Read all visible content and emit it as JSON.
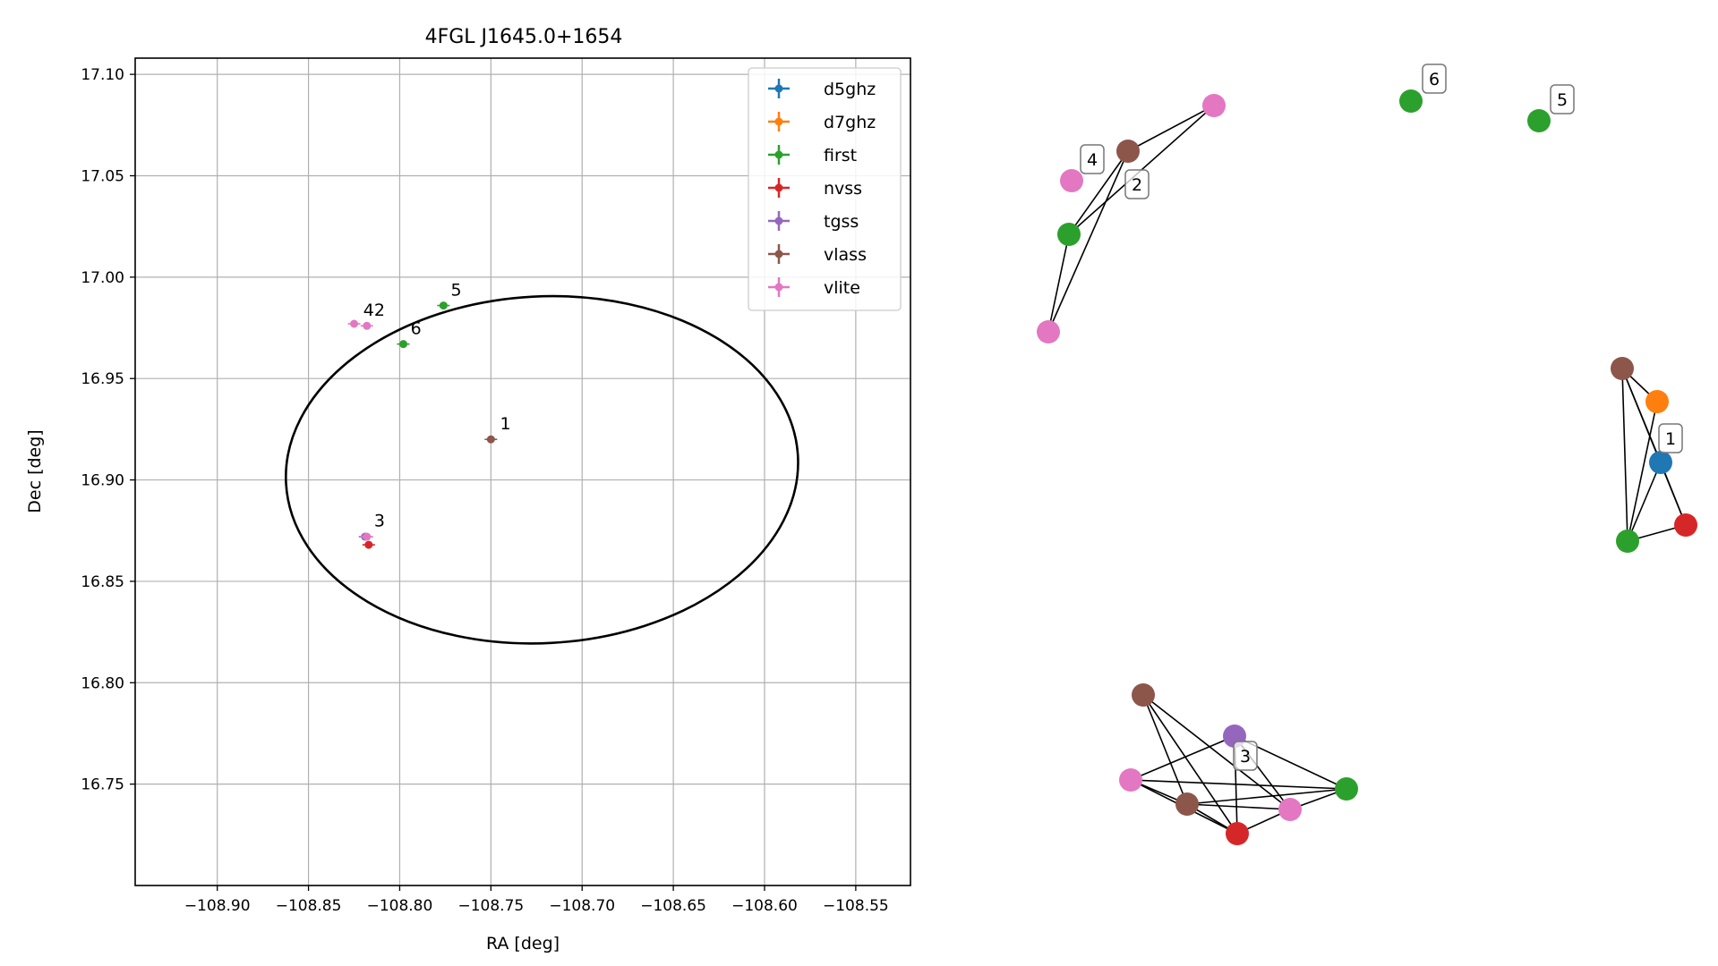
{
  "chart_data": [
    {
      "type": "scatter",
      "title": "4FGL J1645.0+1654",
      "xlabel": "RA [deg]",
      "ylabel": "Dec [deg]",
      "xlim": [
        -108.945,
        -108.52
      ],
      "ylim": [
        16.7,
        17.108
      ],
      "grid": true,
      "legend_placement": "top-right",
      "xticks": [
        -108.9,
        -108.85,
        -108.8,
        -108.75,
        -108.7,
        -108.65,
        -108.6,
        -108.55
      ],
      "xtick_labels": [
        "−108.90",
        "−108.85",
        "−108.80",
        "−108.75",
        "−108.70",
        "−108.65",
        "−108.60",
        "−108.55"
      ],
      "yticks": [
        16.75,
        16.8,
        16.85,
        16.9,
        16.95,
        17.0,
        17.05,
        17.1
      ],
      "ytick_labels": [
        "16.75",
        "16.80",
        "16.85",
        "16.90",
        "16.95",
        "17.00",
        "17.05",
        "17.10"
      ],
      "series": [
        {
          "name": "d5ghz",
          "color": "#1f77b4",
          "points": []
        },
        {
          "name": "d7ghz",
          "color": "#ff7f0e",
          "points": []
        },
        {
          "name": "first",
          "color": "#2ca02c",
          "points": [
            {
              "x": -108.776,
              "y": 16.986
            },
            {
              "x": -108.798,
              "y": 16.967
            }
          ]
        },
        {
          "name": "nvss",
          "color": "#d62728",
          "points": [
            {
              "x": -108.817,
              "y": 16.868
            }
          ]
        },
        {
          "name": "tgss",
          "color": "#9467bd",
          "points": [
            {
              "x": -108.819,
              "y": 16.872
            }
          ]
        },
        {
          "name": "vlass",
          "color": "#8c564b",
          "points": [
            {
              "x": -108.75,
              "y": 16.92
            }
          ]
        },
        {
          "name": "vlite",
          "color": "#e377c2",
          "points": [
            {
              "x": -108.825,
              "y": 16.977
            },
            {
              "x": -108.818,
              "y": 16.976
            },
            {
              "x": -108.818,
              "y": 16.872
            }
          ]
        }
      ],
      "point_labels": [
        {
          "text": "1",
          "x": -108.745,
          "y": 16.925
        },
        {
          "text": "2",
          "x": -108.814,
          "y": 16.981
        },
        {
          "text": "3",
          "x": -108.814,
          "y": 16.877
        },
        {
          "text": "4",
          "x": -108.82,
          "y": 16.981
        },
        {
          "text": "5",
          "x": -108.772,
          "y": 16.991
        },
        {
          "text": "6",
          "x": -108.794,
          "y": 16.972
        }
      ],
      "ellipse": {
        "center": {
          "x": -108.722,
          "y": 16.905
        },
        "semi_x": 0.1405,
        "semi_y": 0.0855,
        "angle_deg": -3,
        "color": "#000000"
      }
    },
    {
      "type": "network",
      "clusters": [
        {
          "label": "1",
          "nodes": [
            {
              "id": "a",
              "color": "#8c564b"
            },
            {
              "id": "b",
              "color": "#ff7f0e"
            },
            {
              "id": "c",
              "color": "#1f77b4"
            },
            {
              "id": "d",
              "color": "#d62728"
            },
            {
              "id": "e",
              "color": "#2ca02c"
            }
          ],
          "edges": [
            [
              "a",
              "b"
            ],
            [
              "a",
              "c"
            ],
            [
              "a",
              "d"
            ],
            [
              "a",
              "e"
            ],
            [
              "b",
              "e"
            ],
            [
              "c",
              "d"
            ],
            [
              "c",
              "e"
            ],
            [
              "d",
              "e"
            ]
          ]
        },
        {
          "label": "2",
          "nodes": [
            {
              "id": "a",
              "color": "#8c564b"
            },
            {
              "id": "b",
              "color": "#e377c2"
            },
            {
              "id": "c",
              "color": "#2ca02c"
            },
            {
              "id": "d",
              "color": "#e377c2"
            }
          ],
          "edges": [
            [
              "a",
              "b"
            ],
            [
              "a",
              "c"
            ],
            [
              "a",
              "d"
            ],
            [
              "b",
              "c"
            ],
            [
              "c",
              "d"
            ]
          ]
        },
        {
          "label": "3",
          "nodes": [
            {
              "id": "a",
              "color": "#8c564b"
            },
            {
              "id": "b",
              "color": "#9467bd"
            },
            {
              "id": "c",
              "color": "#e377c2"
            },
            {
              "id": "d",
              "color": "#8c564b"
            },
            {
              "id": "e",
              "color": "#d62728"
            },
            {
              "id": "f",
              "color": "#e377c2"
            },
            {
              "id": "g",
              "color": "#2ca02c"
            }
          ],
          "edges": [
            [
              "a",
              "d"
            ],
            [
              "a",
              "e"
            ],
            [
              "a",
              "f"
            ],
            [
              "b",
              "c"
            ],
            [
              "b",
              "e"
            ],
            [
              "b",
              "f"
            ],
            [
              "b",
              "g"
            ],
            [
              "c",
              "d"
            ],
            [
              "c",
              "e"
            ],
            [
              "c",
              "g"
            ],
            [
              "d",
              "e"
            ],
            [
              "d",
              "f"
            ],
            [
              "e",
              "f"
            ],
            [
              "f",
              "g"
            ],
            [
              "d",
              "g"
            ]
          ]
        },
        {
          "label": "4",
          "nodes": [
            {
              "id": "a",
              "color": "#e377c2"
            }
          ],
          "edges": []
        },
        {
          "label": "5",
          "nodes": [
            {
              "id": "a",
              "color": "#2ca02c"
            }
          ],
          "edges": []
        },
        {
          "label": "6",
          "nodes": [
            {
              "id": "a",
              "color": "#2ca02c"
            }
          ],
          "edges": []
        }
      ]
    }
  ]
}
